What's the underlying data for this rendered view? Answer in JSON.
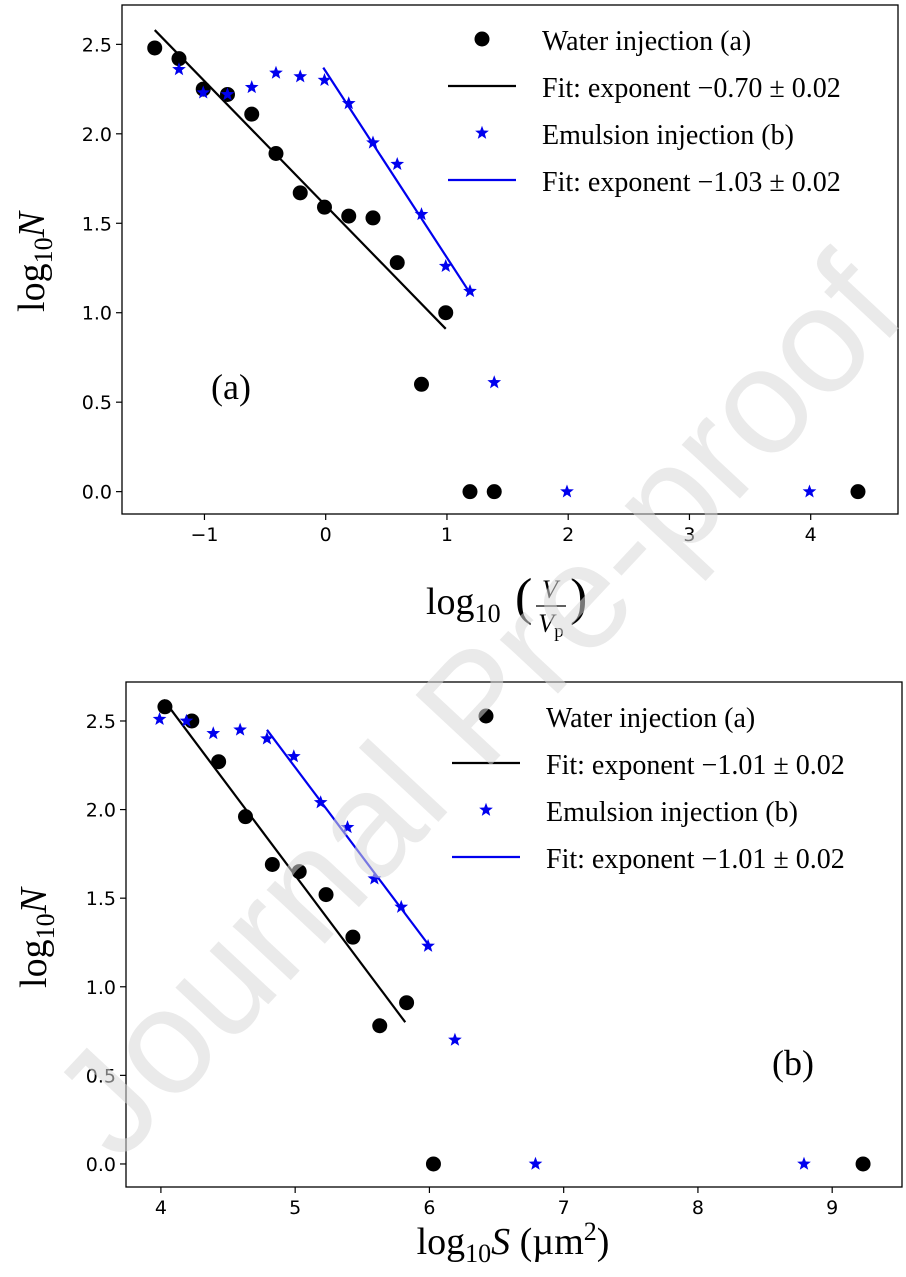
{
  "watermark": "Journal Pre-proof",
  "chart_data": [
    {
      "type": "scatter",
      "panel_label": "(a)",
      "xlim": [
        -1.68,
        4.72
      ],
      "ylim": [
        -0.125,
        2.72
      ],
      "x_ticks": [
        -1,
        0,
        1,
        2,
        3,
        4
      ],
      "x_tick_labels": [
        "−1",
        "0",
        "1",
        "2",
        "3",
        "4"
      ],
      "y_ticks": [
        0.0,
        0.5,
        1.0,
        1.5,
        2.0,
        2.5
      ],
      "y_tick_labels": [
        "0.0",
        "0.5",
        "1.0",
        "1.5",
        "2.0",
        "2.5"
      ],
      "xlabel": "log10(V/Vp)",
      "ylabel": "log10N",
      "legend_position": "top-right",
      "legend": [
        "Water injection (a)",
        "Fit: exponent −0.70 ± 0.02",
        "Emulsion injection (b)",
        "Fit: exponent −1.03 ± 0.02"
      ],
      "series": [
        {
          "name": "Water injection (a)",
          "marker": "circle",
          "color": "#000000",
          "x": [
            -1.41,
            -1.21,
            -1.01,
            -0.81,
            -0.61,
            -0.41,
            -0.21,
            -0.01,
            0.19,
            0.39,
            0.59,
            0.79,
            0.99,
            1.19,
            1.39,
            4.39
          ],
          "y": [
            2.48,
            2.42,
            2.25,
            2.22,
            2.11,
            1.89,
            1.67,
            1.59,
            1.54,
            1.53,
            1.28,
            0.6,
            1.0,
            0.0,
            0.0,
            0.0
          ]
        },
        {
          "name": "Emulsion injection (b)",
          "marker": "star",
          "color": "#0000ee",
          "x": [
            -1.21,
            -1.01,
            -0.81,
            -0.61,
            -0.41,
            -0.21,
            -0.01,
            0.19,
            0.39,
            0.59,
            0.79,
            0.99,
            1.19,
            1.39,
            1.99,
            3.99
          ],
          "y": [
            2.36,
            2.23,
            2.22,
            2.26,
            2.34,
            2.32,
            2.3,
            2.17,
            1.95,
            1.83,
            1.55,
            1.26,
            1.12,
            0.61,
            0.0,
            0.0
          ]
        }
      ],
      "fits": [
        {
          "name": "Fit: exponent −0.70 ± 0.02",
          "color": "#000000",
          "x": [
            -1.41,
            0.99
          ],
          "y": [
            2.58,
            0.91
          ]
        },
        {
          "name": "Fit: exponent −1.03 ± 0.02",
          "color": "#0000ee",
          "x": [
            -0.02,
            1.19
          ],
          "y": [
            2.37,
            1.11
          ]
        }
      ]
    },
    {
      "type": "scatter",
      "panel_label": "(b)",
      "xlim": [
        3.74,
        9.52
      ],
      "ylim": [
        -0.13,
        2.72
      ],
      "x_ticks": [
        4,
        5,
        6,
        7,
        8,
        9
      ],
      "x_tick_labels": [
        "4",
        "5",
        "6",
        "7",
        "8",
        "9"
      ],
      "y_ticks": [
        0.0,
        0.5,
        1.0,
        1.5,
        2.0,
        2.5
      ],
      "y_tick_labels": [
        "0.0",
        "0.5",
        "1.0",
        "1.5",
        "2.0",
        "2.5"
      ],
      "xlabel": "log10S (µm2)",
      "ylabel": "log10N",
      "legend_position": "top-right",
      "legend": [
        "Water injection (a)",
        "Fit: exponent −1.01 ± 0.02",
        "Emulsion injection (b)",
        "Fit: exponent −1.01 ± 0.02"
      ],
      "series": [
        {
          "name": "Water injection (a)",
          "marker": "circle",
          "color": "#000000",
          "x": [
            4.03,
            4.23,
            4.43,
            4.63,
            4.83,
            5.03,
            5.23,
            5.43,
            5.63,
            5.83,
            6.03,
            9.23
          ],
          "y": [
            2.58,
            2.5,
            2.27,
            1.96,
            1.69,
            1.65,
            1.52,
            1.28,
            0.78,
            0.91,
            0.0,
            0.0
          ]
        },
        {
          "name": "Emulsion injection (b)",
          "marker": "star",
          "color": "#0000ee",
          "x": [
            3.99,
            4.19,
            4.39,
            4.59,
            4.79,
            4.99,
            5.19,
            5.39,
            5.59,
            5.79,
            5.99,
            6.19,
            6.79,
            8.79
          ],
          "y": [
            2.51,
            2.5,
            2.43,
            2.45,
            2.4,
            2.3,
            2.04,
            1.9,
            1.61,
            1.45,
            1.23,
            0.7,
            0.0,
            0.0
          ]
        }
      ],
      "fits": [
        {
          "name": "Fit: exponent −1.01 ± 0.02",
          "color": "#000000",
          "x": [
            4.02,
            5.82
          ],
          "y": [
            2.62,
            0.8
          ]
        },
        {
          "name": "Fit: exponent −1.01 ± 0.02",
          "color": "#0000ee",
          "x": [
            4.79,
            6.0
          ],
          "y": [
            2.45,
            1.23
          ]
        }
      ]
    }
  ]
}
